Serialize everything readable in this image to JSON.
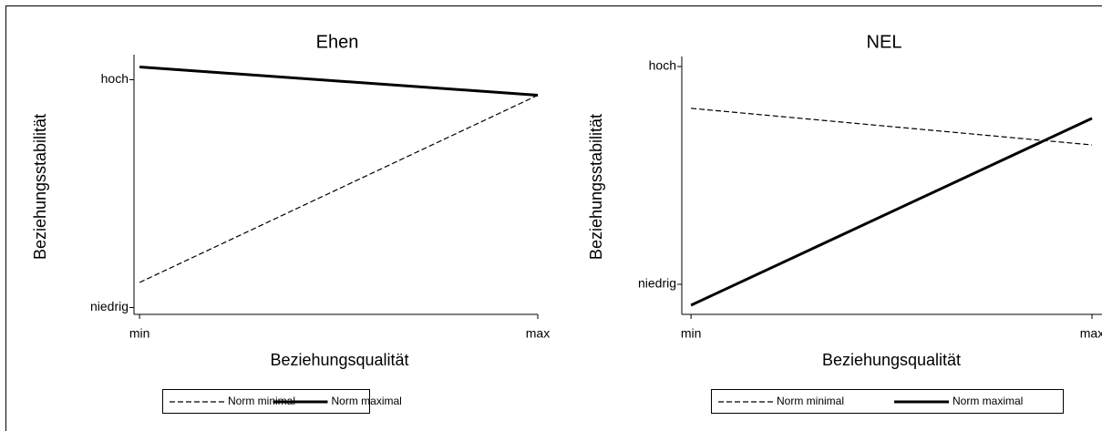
{
  "chart_data": [
    {
      "type": "line",
      "title": "Ehen",
      "x_label": "Beziehungsqualität",
      "y_label": "Beziehungsstabilität",
      "x": [
        0,
        1
      ],
      "xlim": [
        -0.014,
        1
      ],
      "xticks": [
        {
          "value": 0,
          "label": "min"
        },
        {
          "value": 1,
          "label": "max"
        }
      ],
      "ylim": [
        -0.03,
        1.11
      ],
      "yticks": [
        {
          "value": 0,
          "label": "niedrig"
        },
        {
          "value": 1,
          "label": "hoch"
        }
      ],
      "series": [
        {
          "name": "Norm minimal",
          "color": "#000000",
          "dash": "dashed",
          "values": [
            0.11,
            0.932
          ]
        },
        {
          "name": "Norm maximal",
          "color": "#000000",
          "dash": "solid",
          "values": [
            1.056,
            0.932
          ]
        }
      ]
    },
    {
      "type": "line",
      "title": "NEL",
      "x_label": "Beziehungsqualität",
      "y_label": "Beziehungsstabilität",
      "x": [
        0,
        1
      ],
      "xlim": [
        -0.023,
        1.025
      ],
      "xticks": [
        {
          "value": 0,
          "label": "min"
        },
        {
          "value": 1,
          "label": "max"
        }
      ],
      "ylim": [
        -0.138,
        1.046
      ],
      "yticks": [
        {
          "value": 0,
          "label": "niedrig"
        },
        {
          "value": 1,
          "label": "hoch"
        }
      ],
      "series": [
        {
          "name": "Norm minimal",
          "color": "#000000",
          "dash": "dashed",
          "values": [
            0.808,
            0.64
          ]
        },
        {
          "name": "Norm maximal",
          "color": "#000000",
          "dash": "solid",
          "values": [
            -0.096,
            0.762
          ]
        }
      ]
    }
  ]
}
